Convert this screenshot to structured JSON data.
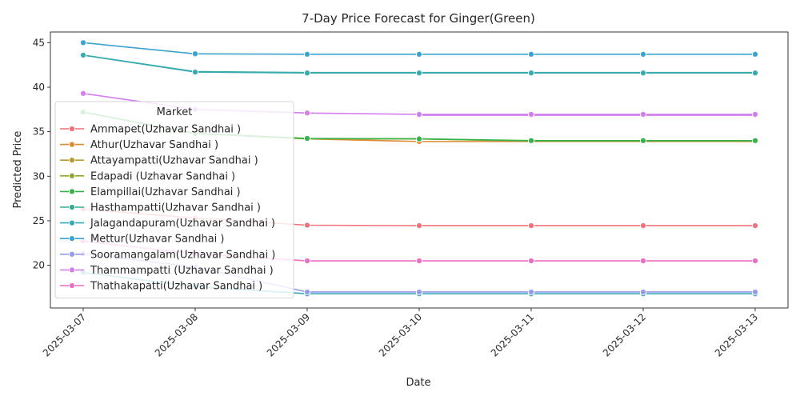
{
  "chart_data": {
    "type": "line",
    "title": "7-Day Price Forecast for Ginger(Green)",
    "xlabel": "Date",
    "ylabel": "Predicted Price",
    "x": [
      "2025-03-07",
      "2025-03-08",
      "2025-03-09",
      "2025-03-10",
      "2025-03-11",
      "2025-03-12",
      "2025-03-13"
    ],
    "ylim": [
      15.2,
      46.2
    ],
    "yticks": [
      20,
      25,
      30,
      35,
      40,
      45
    ],
    "legend": {
      "title": "Market",
      "placement": "upper-left"
    },
    "series": [
      {
        "name": "Ammapet(Uzhavar Sandhai )",
        "color": "#f0717a",
        "values": [
          26.3,
          25.3,
          24.5,
          24.45,
          24.45,
          24.45,
          24.45
        ]
      },
      {
        "name": "Athur(Uzhavar Sandhai )",
        "color": "#dd8a31",
        "values": [
          37.2,
          34.8,
          34.2,
          33.9,
          33.9,
          33.9,
          33.9
        ]
      },
      {
        "name": "Attayampatti(Uzhavar Sandhai )",
        "color": "#bb9a31",
        "values": [
          37.2,
          34.8,
          34.2,
          34.2,
          33.95,
          33.95,
          33.95
        ]
      },
      {
        "name": "Edapadi (Uzhavar Sandhai )",
        "color": "#90a631",
        "values": [
          37.2,
          34.8,
          34.2,
          34.2,
          33.95,
          33.95,
          33.95
        ]
      },
      {
        "name": "Elampillai(Uzhavar Sandhai )",
        "color": "#35b348",
        "values": [
          37.2,
          34.8,
          34.25,
          34.2,
          34.0,
          34.0,
          34.0
        ]
      },
      {
        "name": "Hasthampatti(Uzhavar Sandhai )",
        "color": "#36ad8f",
        "values": [
          43.6,
          41.75,
          41.65,
          41.65,
          41.65,
          41.65,
          41.65
        ]
      },
      {
        "name": "Jalagandapuram(Uzhavar Sandhai )",
        "color": "#38aab4",
        "values": [
          43.6,
          41.7,
          41.6,
          41.6,
          41.6,
          41.6,
          41.6
        ]
      },
      {
        "name": "Mettur(Uzhavar Sandhai )",
        "color": "#3ba3d0",
        "values": [
          45.0,
          43.75,
          43.7,
          43.7,
          43.7,
          43.7,
          43.7
        ]
      },
      {
        "name": "Sooramangalam(Uzhavar Sandhai )",
        "color": "#959bef",
        "values": [
          21.3,
          19.8,
          17.0,
          17.0,
          17.0,
          17.0,
          17.0
        ]
      },
      {
        "name": "Thammampatti (Uzhavar Sandhai )",
        "color": "#d47ef0",
        "values": [
          39.3,
          37.5,
          37.1,
          36.95,
          36.95,
          36.95,
          36.95
        ]
      },
      {
        "name": "Thathakapatti(Uzhavar Sandhai )",
        "color": "#ef6cc6",
        "values": [
          22.7,
          21.3,
          20.5,
          20.5,
          20.5,
          20.5,
          20.5
        ]
      }
    ],
    "extra_segments": [
      {
        "color": "#38aab4",
        "values": [
          19.2,
          17.6,
          16.8,
          16.8,
          16.8,
          16.8,
          16.8
        ]
      },
      {
        "color": "#d47ef0",
        "values": [
          null,
          null,
          null,
          36.85,
          36.85,
          36.85,
          36.85
        ]
      }
    ]
  }
}
